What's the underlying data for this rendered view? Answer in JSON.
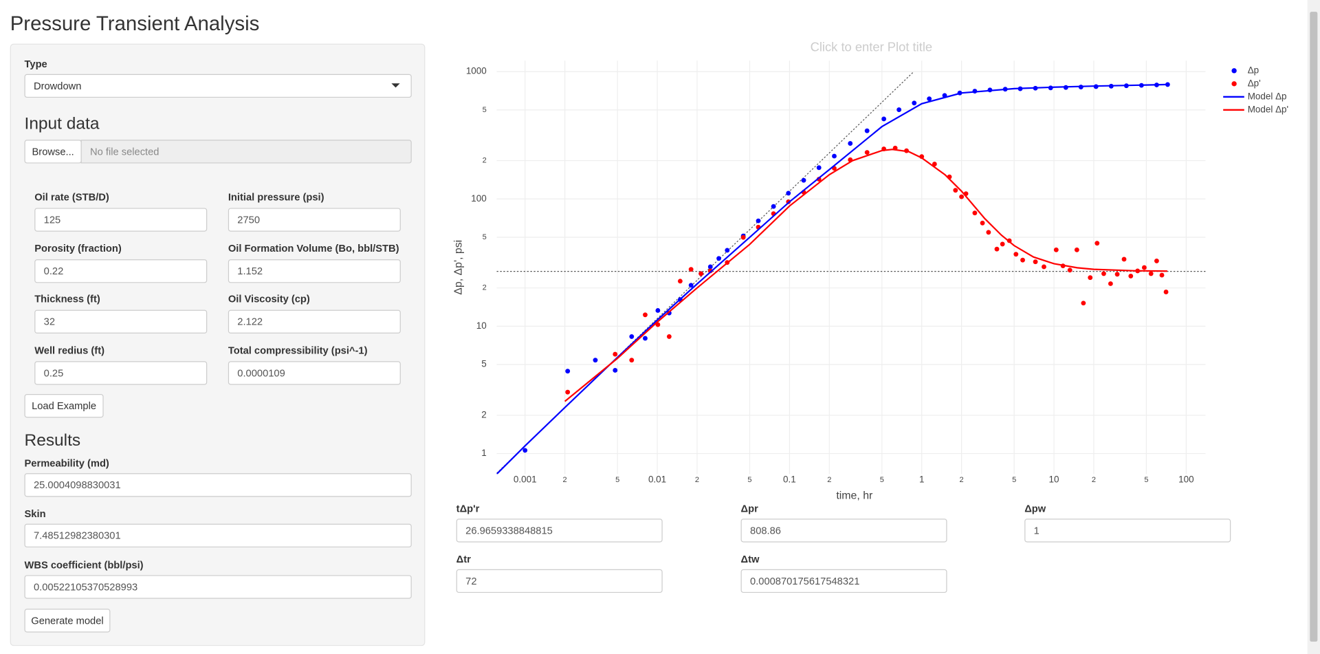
{
  "header": {
    "title": "Pressure Transient Analysis"
  },
  "sidebar": {
    "type_label": "Type",
    "type_value": "Drowdown",
    "input_heading": "Input data",
    "browse": "Browse...",
    "file_placeholder": "No file selected",
    "fields": [
      {
        "label": "Oil rate (STB/D)",
        "value": "125"
      },
      {
        "label": "Initial pressure (psi)",
        "value": "2750"
      },
      {
        "label": "Porosity (fraction)",
        "value": "0.22"
      },
      {
        "label": "Oil Formation Volume (Bo, bbl/STB)",
        "value": "1.152"
      },
      {
        "label": "Thickness (ft)",
        "value": "32"
      },
      {
        "label": "Oil Viscosity (cp)",
        "value": "2.122"
      },
      {
        "label": "Well redius (ft)",
        "value": "0.25"
      },
      {
        "label": "Total compressibility (psi^-1)",
        "value": "0.0000109"
      }
    ],
    "load_example": "Load Example",
    "results_heading": "Results",
    "results": [
      {
        "label": "Permeability (md)",
        "value": "25.0004098830031"
      },
      {
        "label": "Skin",
        "value": "7.48512982380301"
      },
      {
        "label": "WBS coefficient (bbl/psi)",
        "value": "0.00522105370528993"
      }
    ],
    "generate": "Generate model"
  },
  "chart_data": {
    "type": "scatter",
    "title": "Click to enter Plot title",
    "x_label": "time, hr",
    "y_label": "Δp, Δp', psi",
    "xscale": "log",
    "yscale": "log",
    "xlim": [
      0.00061,
      140
    ],
    "ylim": [
      0.69,
      1220
    ],
    "xticks": [
      0.001,
      {
        "value": 0.002,
        "label": "2"
      },
      {
        "value": 0.005,
        "label": "5"
      },
      0.01,
      {
        "value": 0.02,
        "label": "2"
      },
      {
        "value": 0.05,
        "label": "5"
      },
      0.1,
      {
        "value": 0.2,
        "label": "2"
      },
      {
        "value": 0.5,
        "label": "5"
      },
      1,
      {
        "value": 2,
        "label": "2"
      },
      {
        "value": 5,
        "label": "5"
      },
      10,
      {
        "value": 20,
        "label": "2"
      },
      {
        "value": 50,
        "label": "5"
      },
      100
    ],
    "yticks": [
      1,
      2,
      5,
      10,
      {
        "value": 20,
        "label": "2"
      },
      {
        "value": 50,
        "label": "5"
      },
      100,
      {
        "value": 200,
        "label": "2"
      },
      {
        "value": 500,
        "label": "5"
      },
      1000
    ],
    "grid": true,
    "legend": "top-right",
    "series": [
      {
        "name": "Δp",
        "color": "#0000ff",
        "mode": "markers",
        "x": [
          0.001,
          0.0021,
          0.0034,
          0.0048,
          0.0064,
          0.0081,
          0.0101,
          0.0123,
          0.0149,
          0.018,
          0.0214,
          0.0252,
          0.0292,
          0.0338,
          0.0447,
          0.0581,
          0.0757,
          0.0981,
          0.128,
          0.167,
          0.218,
          0.288,
          0.386,
          0.517,
          0.673,
          0.877,
          1.14,
          1.49,
          1.94,
          2.52,
          3.28,
          4.28,
          5.56,
          7.24,
          9.44,
          12.3,
          16,
          20.8,
          27.1,
          35.3,
          45.9,
          59.8,
          72.4
        ],
        "values": [
          1.06,
          4.44,
          5.42,
          4.51,
          8.3,
          8.04,
          13.3,
          12.7,
          16.2,
          21,
          25.9,
          29.3,
          34.1,
          39.5,
          51.2,
          67.3,
          87.3,
          111,
          140,
          176,
          217,
          273,
          343,
          425,
          502,
          567,
          612,
          650,
          680,
          702,
          718,
          728,
          734,
          741,
          745,
          751,
          757,
          763,
          769,
          775,
          780,
          786,
          792
        ]
      },
      {
        "name": "Δp'",
        "color": "#ff0000",
        "mode": "markers",
        "x": [
          0.0021,
          0.0048,
          0.0064,
          0.0081,
          0.0101,
          0.0123,
          0.0149,
          0.018,
          0.0214,
          0.0252,
          0.0338,
          0.0447,
          0.0581,
          0.0757,
          0.0981,
          0.128,
          0.167,
          0.218,
          0.288,
          0.386,
          0.517,
          0.63,
          0.767,
          1,
          1.25,
          1.62,
          1.8,
          2,
          2.16,
          2.52,
          2.88,
          3.2,
          3.7,
          4.08,
          4.6,
          5.16,
          5.8,
          7.24,
          8.4,
          10.4,
          11.7,
          13.2,
          14.9,
          16.7,
          18.8,
          21.2,
          23.8,
          26.8,
          30.1,
          33.9,
          38.1,
          42.9,
          48.2,
          54.2,
          59.8,
          65.5,
          70.4
        ],
        "values": [
          3.04,
          6.03,
          5.42,
          12.3,
          10.3,
          8.3,
          22.6,
          28,
          25.9,
          27.2,
          31.7,
          49.9,
          60,
          76.6,
          95,
          113,
          143,
          174,
          203,
          232,
          247,
          251,
          239,
          215,
          188,
          149,
          117,
          104,
          110,
          77.6,
          64.7,
          54.7,
          40.4,
          44.2,
          47,
          36.8,
          33.1,
          32.1,
          29.3,
          39.8,
          29.8,
          27.6,
          39.8,
          15.2,
          24.1,
          44.9,
          25.9,
          21.6,
          25.6,
          33.6,
          24.8,
          27.2,
          28.9,
          25.9,
          32.6,
          25.2,
          18.6
        ]
      },
      {
        "name": "Model Δp",
        "color": "#0000ff",
        "mode": "lines",
        "x": [
          0.00061,
          0.001,
          0.002,
          0.005,
          0.01,
          0.02,
          0.05,
          0.1,
          0.2,
          0.5,
          1,
          2,
          5,
          10,
          20,
          50,
          72
        ],
        "values": [
          0.69,
          1.15,
          2.3,
          5.7,
          11.2,
          21.5,
          50,
          95,
          170,
          370,
          560,
          680,
          735,
          755,
          770,
          785,
          792
        ]
      },
      {
        "name": "Model Δp'",
        "color": "#ff0000",
        "mode": "lines",
        "x": [
          0.002,
          0.005,
          0.01,
          0.02,
          0.05,
          0.1,
          0.2,
          0.3,
          0.5,
          0.6,
          0.8,
          1,
          1.5,
          2,
          3,
          4,
          5,
          7,
          10,
          15,
          20,
          40,
          72
        ],
        "values": [
          2.57,
          5.6,
          10.8,
          20,
          44,
          88,
          155,
          200,
          240,
          245,
          235,
          210,
          155,
          115,
          70,
          52,
          43,
          35,
          31,
          28.8,
          28,
          27.3,
          27.1
        ]
      }
    ]
  },
  "parameters": [
    {
      "label": "tΔp'r",
      "value": "26.9659338848815"
    },
    {
      "label": "Δpr",
      "value": "808.86"
    },
    {
      "label": "Δpw",
      "value": "1"
    },
    {
      "label": "Δtr",
      "value": "72"
    },
    {
      "label": "Δtw",
      "value": "0.000870175617548321"
    }
  ]
}
